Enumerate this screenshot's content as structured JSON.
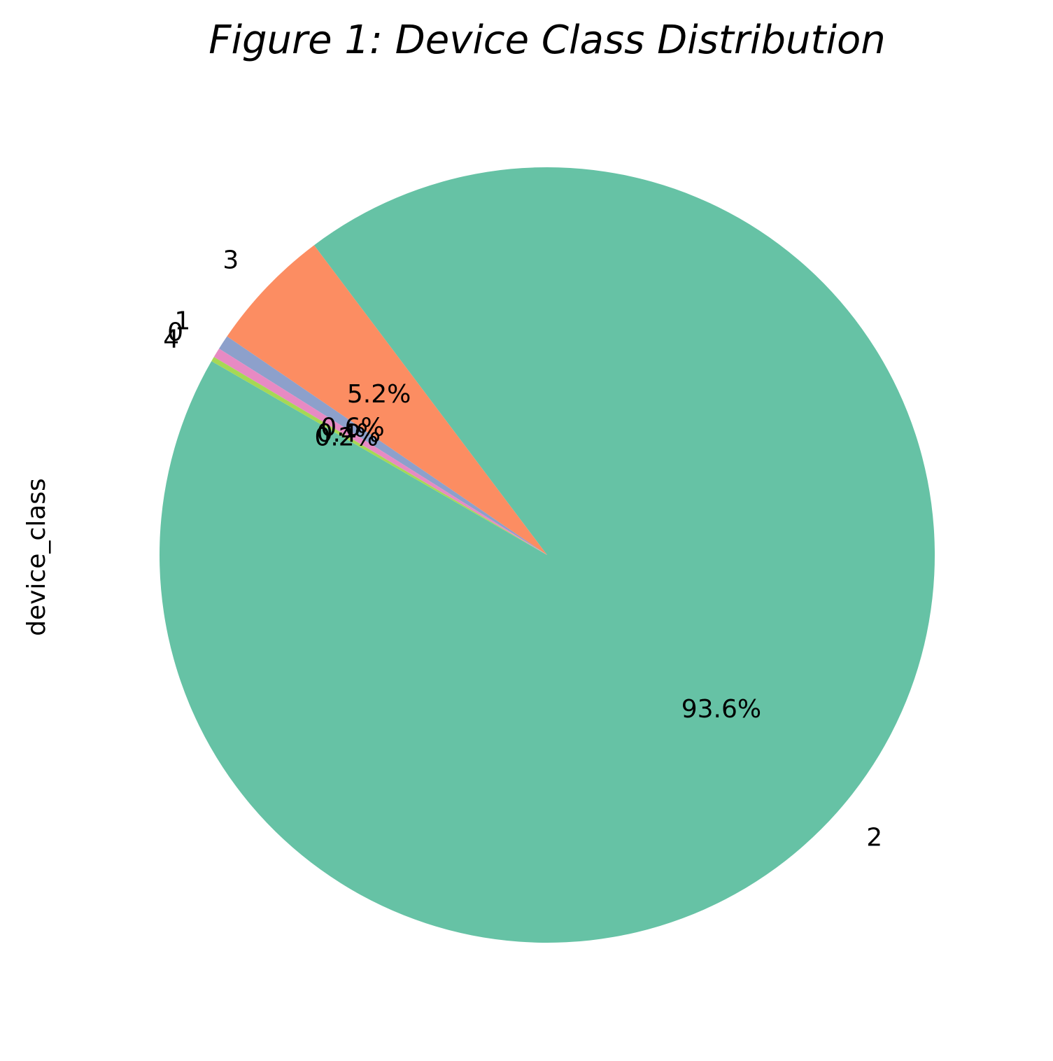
{
  "chart_data": {
    "type": "pie",
    "title": "Figure 1: Device Class Distribution",
    "ylabel": "device_class",
    "start_angle_deg": 150,
    "direction": "counterclockwise",
    "legend": "none",
    "slices": [
      {
        "label": "2",
        "value": 93.6,
        "pct_label": "93.6%",
        "color": "#66c2a5"
      },
      {
        "label": "3",
        "value": 5.2,
        "pct_label": "5.2%",
        "color": "#fc8d62"
      },
      {
        "label": "1",
        "value": 0.6,
        "pct_label": "0.6%",
        "color": "#8da0cb"
      },
      {
        "label": "0",
        "value": 0.4,
        "pct_label": "0.4%",
        "color": "#e78ac3"
      },
      {
        "label": "4",
        "value": 0.2,
        "pct_label": "0.2%",
        "color": "#a6d854"
      }
    ]
  }
}
